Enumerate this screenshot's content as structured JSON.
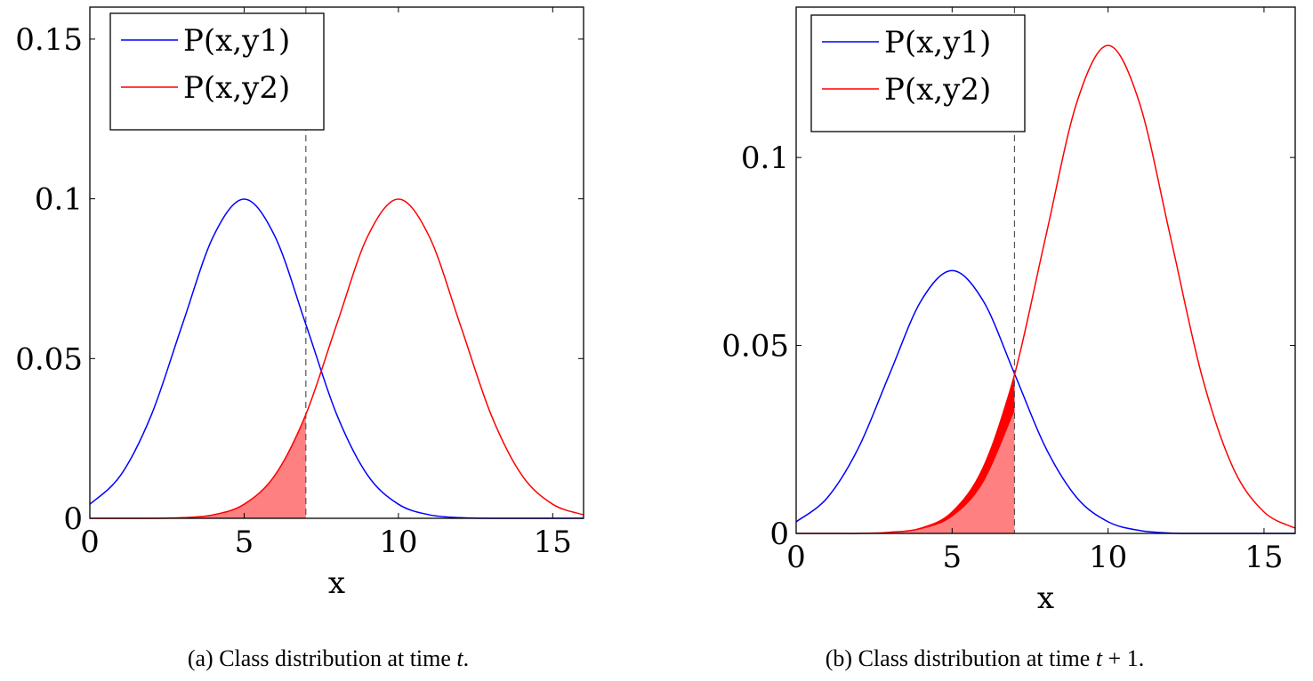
{
  "chart_data": [
    {
      "type": "line",
      "xlabel": "x",
      "ylabel": "",
      "xlim": [
        0,
        16
      ],
      "ylim": [
        0,
        0.16
      ],
      "xticks": [
        0,
        5,
        10,
        15
      ],
      "xtick_labels": [
        "0",
        "5",
        "10",
        "15"
      ],
      "yticks": [
        0,
        0.05,
        0.1,
        0.15
      ],
      "ytick_labels": [
        "0",
        "0.05",
        "0.1",
        "0.15"
      ],
      "legend_position": "top-left",
      "threshold_x": 7,
      "x": [
        0,
        1,
        2,
        3,
        4,
        5,
        6,
        7,
        8,
        9,
        10,
        11,
        12,
        13,
        14,
        15,
        16
      ],
      "series": [
        {
          "name": "P(x,y1)",
          "color": "#0000ff",
          "values": [
            0.0044,
            0.0135,
            0.0325,
            0.0607,
            0.0882,
            0.0999,
            0.0882,
            0.0607,
            0.0325,
            0.0135,
            0.0044,
            0.0011,
            0.0002,
            0.0,
            0.0,
            0.0,
            0.0
          ]
        },
        {
          "name": "P(x,y2)",
          "color": "#ff0000",
          "values": [
            0.0,
            0.0,
            0.0,
            0.0002,
            0.0011,
            0.0044,
            0.0135,
            0.0325,
            0.0607,
            0.0882,
            0.0999,
            0.0882,
            0.0607,
            0.0325,
            0.0135,
            0.0044,
            0.0011
          ]
        }
      ],
      "shaded_regions": [
        {
          "series": "P(x,y2)",
          "from_x": 0,
          "to_x": 7,
          "color": "#ff8080"
        }
      ]
    },
    {
      "type": "line",
      "xlabel": "x",
      "ylabel": "",
      "xlim": [
        0,
        16
      ],
      "ylim": [
        0,
        0.14
      ],
      "xticks": [
        0,
        5,
        10,
        15
      ],
      "xtick_labels": [
        "0",
        "5",
        "10",
        "15"
      ],
      "yticks": [
        0,
        0.05,
        0.1
      ],
      "ytick_labels": [
        "0",
        "0.05",
        "0.1"
      ],
      "legend_position": "top-left",
      "threshold_x": 7,
      "x": [
        0,
        1,
        2,
        3,
        4,
        5,
        6,
        7,
        8,
        9,
        10,
        11,
        12,
        13,
        14,
        15,
        16
      ],
      "series": [
        {
          "name": "P(x,y1)",
          "color": "#0000ff",
          "values": [
            0.0031,
            0.0095,
            0.0228,
            0.0425,
            0.0618,
            0.0699,
            0.0618,
            0.0425,
            0.0228,
            0.0095,
            0.0031,
            0.0008,
            0.0001,
            0.0,
            0.0,
            0.0,
            0.0
          ]
        },
        {
          "name": "P(x,y2)",
          "color": "#ff0000",
          "values": [
            0.0,
            0.0,
            0.0,
            0.0003,
            0.0014,
            0.0057,
            0.0176,
            0.0422,
            0.0789,
            0.1147,
            0.1298,
            0.1147,
            0.0789,
            0.0422,
            0.0176,
            0.0057,
            0.0014
          ]
        }
      ],
      "shaded_regions": [
        {
          "series": "P(x,y2)",
          "from_x": 0,
          "to_x": 7,
          "color": "#ff0000",
          "layer": "upper"
        },
        {
          "series": "P(x,y2) at time t",
          "from_x": 0,
          "to_x": 7,
          "color": "#ff8080",
          "layer": "lower"
        }
      ],
      "reference_values_at_time_t": [
        0.0,
        0.0,
        0.0,
        0.0002,
        0.0011,
        0.0044,
        0.0135,
        0.0325
      ]
    }
  ],
  "captions": [
    {
      "tag": "(a)",
      "text": "Class distribution at time ",
      "var": "t",
      "suffix": "."
    },
    {
      "tag": "(b)",
      "text": "Class distribution at time ",
      "var": "t",
      "suffix": " + 1."
    }
  ]
}
